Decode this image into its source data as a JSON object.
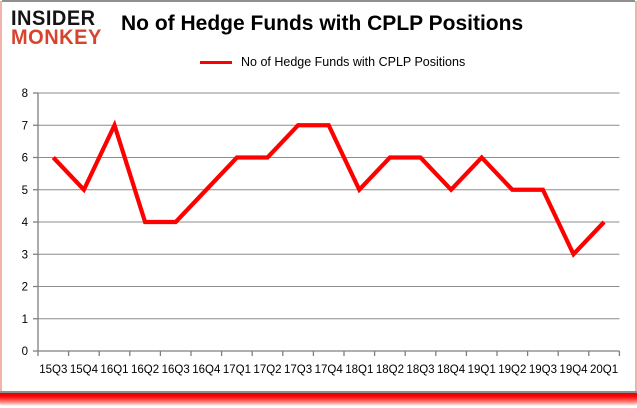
{
  "logo": {
    "line1": "INSIDER",
    "line2": "MONKEY"
  },
  "title": "No of Hedge Funds with CPLP Positions",
  "legend": {
    "label": "No of Hedge Funds with CPLP Positions"
  },
  "colors": {
    "line": "#FF0000",
    "grid": "#8C8C8C",
    "axis": "#7F7F7F",
    "text": "#000000",
    "logo_accent": "#D8432C",
    "frame_accent": "#FF0000",
    "frame_gray": "#8F8F8F"
  },
  "chart_data": {
    "type": "line",
    "title": "No of Hedge Funds with CPLP Positions",
    "categories": [
      "15Q3",
      "15Q4",
      "16Q1",
      "16Q2",
      "16Q3",
      "16Q4",
      "17Q1",
      "17Q2",
      "17Q3",
      "17Q4",
      "18Q1",
      "18Q2",
      "18Q3",
      "18Q4",
      "19Q1",
      "19Q2",
      "19Q3",
      "19Q4",
      "20Q1"
    ],
    "series": [
      {
        "name": "No of Hedge Funds with CPLP Positions",
        "values": [
          6,
          5,
          7,
          4,
          4,
          5,
          6,
          6,
          7,
          7,
          5,
          6,
          6,
          5,
          6,
          5,
          5,
          3,
          4
        ]
      }
    ],
    "xlabel": "",
    "ylabel": "",
    "ylim": [
      0,
      8
    ],
    "ytick_step": 1,
    "yticks": [
      0,
      1,
      2,
      3,
      4,
      5,
      6,
      7,
      8
    ],
    "grid": true,
    "legend_position": "top-center",
    "line_color": "#FF0000"
  }
}
